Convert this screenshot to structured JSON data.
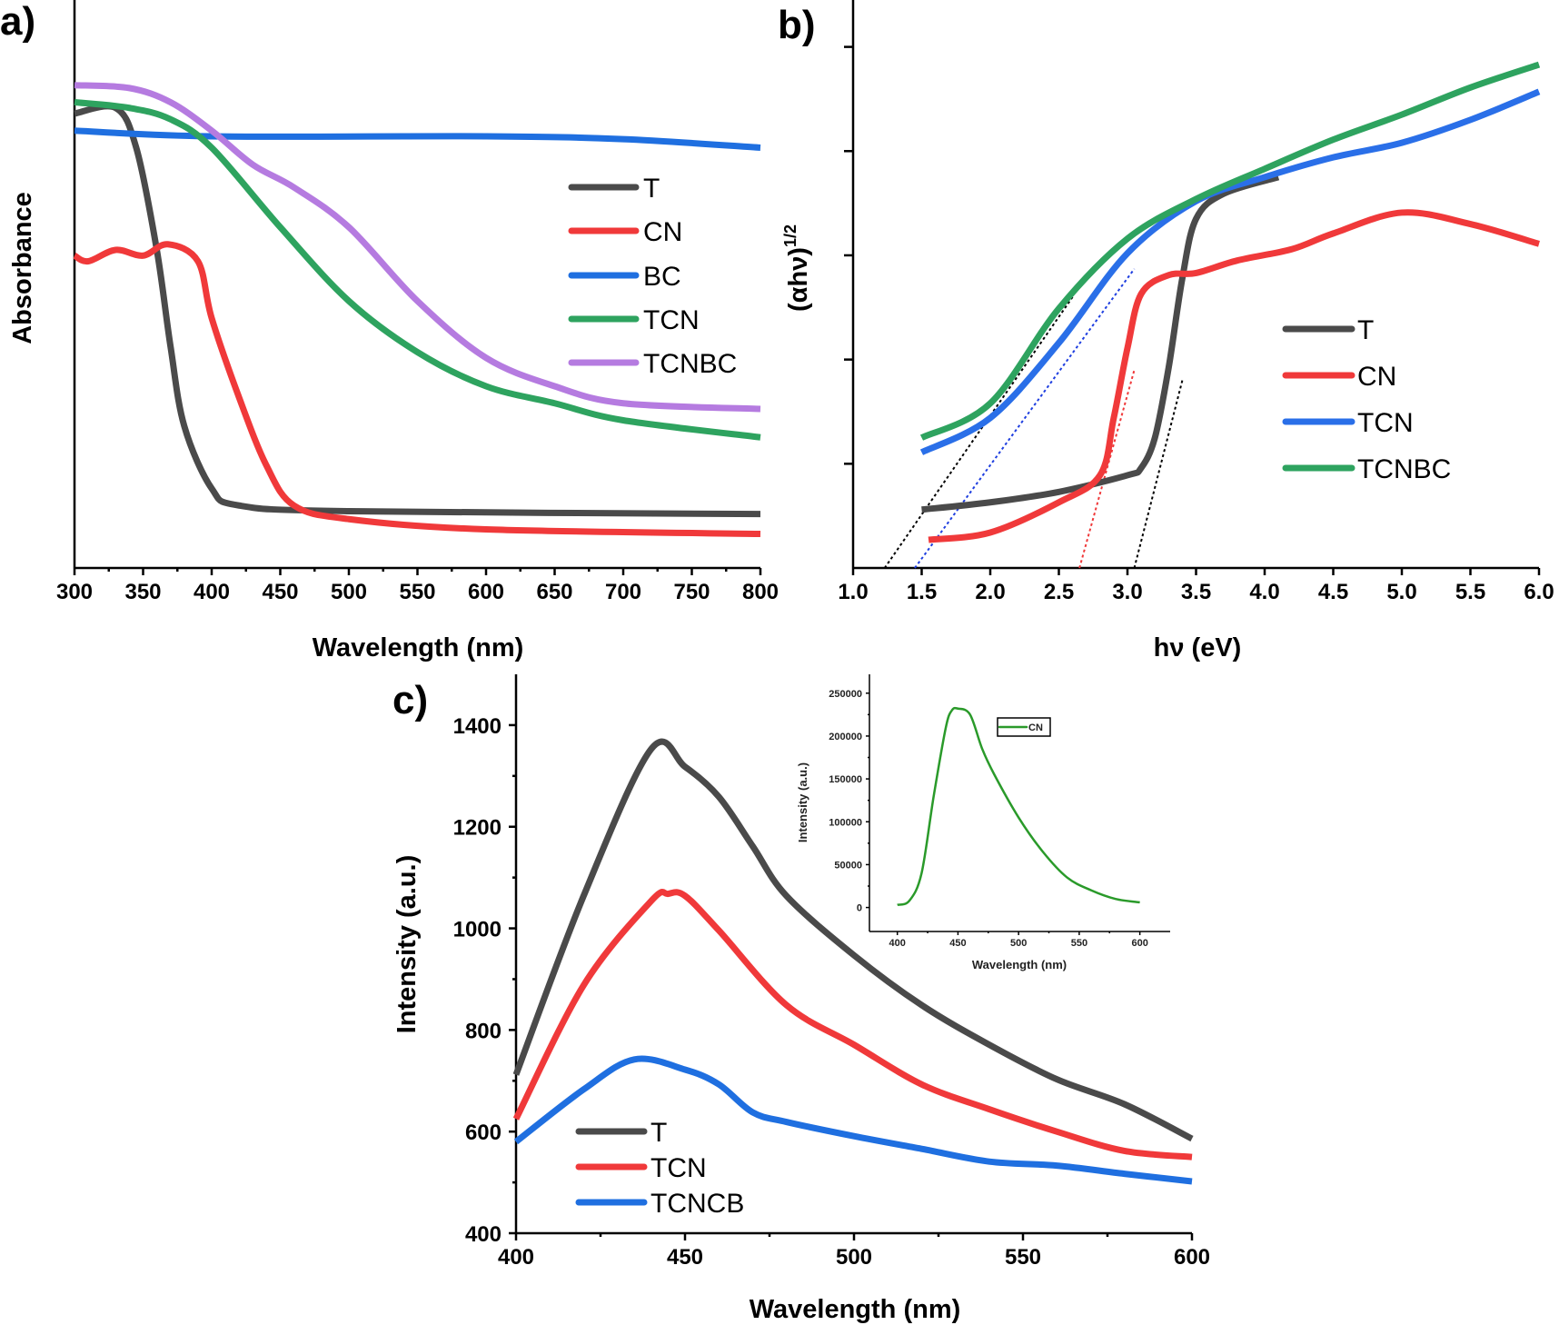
{
  "chart_data": [
    {
      "panel_label": "a)",
      "type": "line",
      "xlabel": "Wavelength (nm)",
      "ylabel": "Absorbance",
      "xlim": [
        300,
        800
      ],
      "ylim": [
        0,
        1
      ],
      "xticks": [
        300,
        350,
        400,
        450,
        500,
        550,
        600,
        650,
        700,
        750,
        800
      ],
      "y_tick_labels_shown": false,
      "grid": false,
      "legend_position": "right",
      "series": [
        {
          "name": "T",
          "color": "#4a4a4a",
          "x": [
            300,
            330,
            345,
            360,
            370,
            380,
            400,
            420,
            500,
            800
          ],
          "y": [
            0.8,
            0.81,
            0.74,
            0.56,
            0.39,
            0.25,
            0.14,
            0.11,
            0.1,
            0.095
          ]
        },
        {
          "name": "CN",
          "color": "#f0393a",
          "x": [
            300,
            310,
            330,
            350,
            368,
            390,
            400,
            420,
            440,
            460,
            500,
            600,
            800
          ],
          "y": [
            0.55,
            0.54,
            0.56,
            0.55,
            0.57,
            0.54,
            0.44,
            0.3,
            0.18,
            0.11,
            0.086,
            0.068,
            0.06
          ]
        },
        {
          "name": "BC",
          "color": "#1f6fe0",
          "x": [
            300,
            400,
            600,
            700,
            800
          ],
          "y": [
            0.77,
            0.76,
            0.76,
            0.755,
            0.74
          ]
        },
        {
          "name": "TCN",
          "color": "#2ea35f",
          "x": [
            300,
            340,
            370,
            400,
            450,
            500,
            550,
            600,
            650,
            700,
            800
          ],
          "y": [
            0.82,
            0.81,
            0.79,
            0.74,
            0.6,
            0.47,
            0.38,
            0.32,
            0.29,
            0.26,
            0.23
          ]
        },
        {
          "name": "TCNBC",
          "color": "#b57be0",
          "x": [
            300,
            340,
            370,
            400,
            430,
            460,
            500,
            550,
            600,
            650,
            700,
            800
          ],
          "y": [
            0.85,
            0.845,
            0.82,
            0.77,
            0.71,
            0.67,
            0.6,
            0.47,
            0.37,
            0.32,
            0.29,
            0.28
          ]
        }
      ]
    },
    {
      "panel_label": "b)",
      "type": "line",
      "xlabel": "hν (eV)",
      "ylabel": "(αhν)",
      "ylabel_sup": "1/2",
      "xlim": [
        1.0,
        6.0
      ],
      "ylim": [
        0,
        5.45
      ],
      "xticks": [
        1.0,
        1.5,
        2.0,
        2.5,
        3.0,
        3.5,
        4.0,
        4.5,
        5.0,
        5.5,
        6.0
      ],
      "yticks_unlabeled": [
        1,
        2,
        3,
        4,
        5
      ],
      "grid": false,
      "legend_position": "right",
      "series": [
        {
          "name": "T",
          "color": "#4a4a4a",
          "x": [
            1.5,
            2.0,
            2.5,
            3.0,
            3.1,
            3.2,
            3.3,
            3.4,
            3.5,
            3.7,
            4.1
          ],
          "y": [
            0.56,
            0.63,
            0.73,
            0.89,
            0.96,
            1.25,
            1.92,
            2.78,
            3.35,
            3.59,
            3.75
          ]
        },
        {
          "name": "CN",
          "color": "#f0393a",
          "x": [
            1.55,
            2.0,
            2.5,
            2.8,
            2.9,
            3.0,
            3.1,
            3.3,
            3.5,
            3.8,
            4.2,
            4.5,
            5.0,
            5.5,
            6.0
          ],
          "y": [
            0.27,
            0.34,
            0.63,
            0.89,
            1.44,
            2.11,
            2.63,
            2.81,
            2.83,
            2.95,
            3.06,
            3.21,
            3.41,
            3.3,
            3.11
          ]
        },
        {
          "name": "TCN",
          "color": "#2a6fe8",
          "x": [
            1.5,
            2.0,
            2.5,
            3.0,
            3.5,
            4.0,
            4.5,
            5.0,
            5.5,
            6.0
          ],
          "y": [
            1.11,
            1.44,
            2.16,
            3.02,
            3.52,
            3.75,
            3.94,
            4.08,
            4.3,
            4.57
          ]
        },
        {
          "name": "TCNBC",
          "color": "#2ea35f",
          "x": [
            1.5,
            2.0,
            2.5,
            3.0,
            3.5,
            4.0,
            4.5,
            5.0,
            5.5,
            6.0
          ],
          "y": [
            1.25,
            1.58,
            2.49,
            3.16,
            3.54,
            3.83,
            4.11,
            4.35,
            4.61,
            4.83
          ]
        }
      ],
      "tangent_lines": [
        {
          "color": "#000000",
          "x": [
            1.23,
            2.6
          ],
          "y": [
            0,
            2.6
          ]
        },
        {
          "color": "#1f3fe0",
          "x": [
            1.45,
            3.05
          ],
          "y": [
            0,
            2.87
          ]
        },
        {
          "color": "#f0393a",
          "x": [
            2.65,
            3.05
          ],
          "y": [
            0,
            1.9
          ]
        },
        {
          "color": "#000000",
          "x": [
            3.05,
            3.4
          ],
          "y": [
            0,
            1.8
          ]
        }
      ]
    },
    {
      "panel_label": "c)",
      "type": "line",
      "xlabel": "Wavelength (nm)",
      "ylabel": "Intensity (a.u.)",
      "xlim": [
        400,
        600
      ],
      "ylim": [
        400,
        1500
      ],
      "xticks": [
        400,
        450,
        500,
        550,
        600
      ],
      "yticks": [
        400,
        600,
        800,
        1000,
        1200,
        1400
      ],
      "grid": false,
      "legend_position": "bottom-left",
      "series": [
        {
          "name": "T",
          "color": "#4a4a4a",
          "x": [
            400,
            420,
            440,
            450,
            460,
            470,
            480,
            500,
            520,
            540,
            560,
            580,
            600
          ],
          "y": [
            712,
            1064,
            1353,
            1318,
            1259,
            1162,
            1064,
            947,
            849,
            771,
            703,
            654,
            586
          ]
        },
        {
          "name": "TCN",
          "color": "#f0393a",
          "x": [
            400,
            420,
            440,
            445,
            450,
            460,
            480,
            500,
            520,
            540,
            560,
            580,
            600
          ],
          "y": [
            625,
            888,
            1054,
            1068,
            1064,
            996,
            849,
            771,
            693,
            644,
            600,
            562,
            550
          ]
        },
        {
          "name": "TCNCB",
          "color": "#1f6fe0",
          "x": [
            400,
            420,
            435,
            450,
            460,
            470,
            480,
            500,
            520,
            540,
            560,
            580,
            600
          ],
          "y": [
            580,
            683,
            742,
            722,
            693,
            638,
            619,
            591,
            566,
            541,
            533,
            517,
            502
          ]
        }
      ]
    },
    {
      "panel_label": "",
      "type": "line",
      "inset_of": "c)",
      "xlabel": "Wavelength (nm)",
      "ylabel": "Intensity (a.u.)",
      "xlim": [
        377,
        625
      ],
      "ylim": [
        -28000,
        272000
      ],
      "xticks": [
        400,
        450,
        500,
        550,
        600
      ],
      "yticks": [
        0,
        50000,
        100000,
        150000,
        200000,
        250000
      ],
      "grid": false,
      "legend_position": "top-right",
      "series": [
        {
          "name": "CN",
          "color": "#2a9a2a",
          "x": [
            400,
            410,
            420,
            430,
            440,
            445,
            450,
            460,
            470,
            480,
            500,
            520,
            540,
            560,
            580,
            600
          ],
          "y": [
            3000,
            8000,
            40000,
            130000,
            210000,
            230000,
            232000,
            225000,
            185000,
            155000,
            105000,
            65000,
            35000,
            20000,
            10000,
            6000
          ]
        }
      ]
    }
  ]
}
